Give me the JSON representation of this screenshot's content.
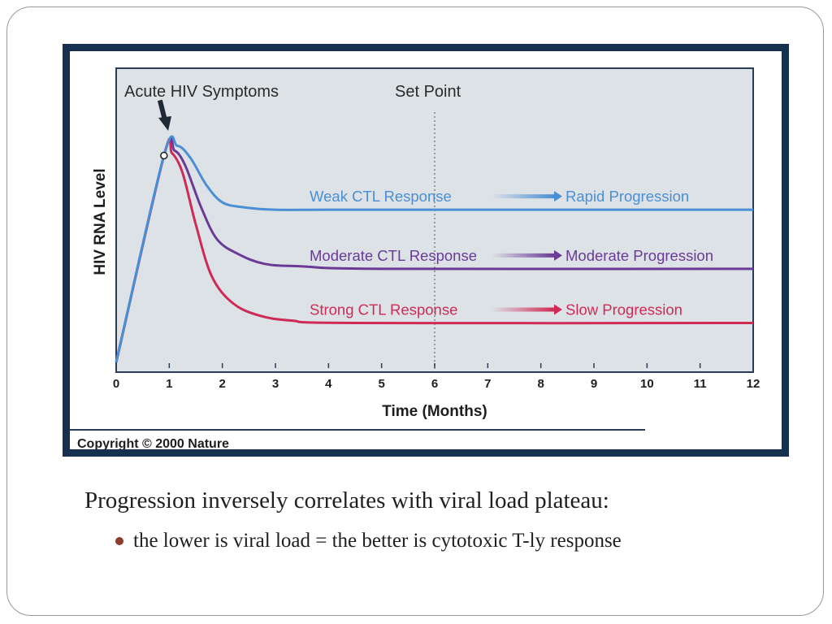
{
  "slide": {
    "caption": "Progression inversely correlates with viral load plateau:",
    "bullet": "the lower is viral load = the better is cytotoxic T-ly response"
  },
  "colors": {
    "frame_border": "#16304f",
    "plot_bg": "#dde2e7",
    "plot_border": "#2a3d56",
    "weak": "#4a8fd3",
    "moderate": "#6a3a96",
    "strong": "#cf2a55",
    "set_point_line": "#9a9a9a",
    "bullet": "#8e3a2c"
  },
  "chart_data": {
    "type": "line",
    "title": "",
    "xlabel": "Time (Months)",
    "ylabel": "HIV RNA Level",
    "xlim": [
      0,
      12
    ],
    "ylim": [
      0,
      100
    ],
    "x_ticks": [
      "0",
      "1",
      "2",
      "3",
      "4",
      "5",
      "6",
      "7",
      "8",
      "9",
      "10",
      "11",
      "12"
    ],
    "grid": false,
    "annotations": {
      "acute": "Acute HIV Symptoms",
      "acute_x": 0.9,
      "acute_y": 84,
      "set_point": "Set Point",
      "set_point_x": 6
    },
    "series": [
      {
        "name": "Weak CTL Response",
        "outcome": "Rapid Progression",
        "color_key": "weak",
        "x": [
          0,
          0.9,
          1.15,
          1.4,
          1.7,
          2.0,
          2.4,
          3.0,
          4.0,
          6.0,
          12
        ],
        "y": [
          0,
          84,
          88,
          83,
          72,
          65,
          63,
          62,
          62,
          62,
          62
        ]
      },
      {
        "name": "Moderate CTL Response",
        "outcome": "Moderate Progression",
        "color_key": "moderate",
        "x": [
          0,
          0.9,
          1.1,
          1.3,
          1.6,
          1.9,
          2.3,
          2.8,
          3.5,
          5.0,
          12
        ],
        "y": [
          0,
          84,
          86,
          80,
          63,
          50,
          44,
          40,
          39,
          38,
          38
        ]
      },
      {
        "name": "Strong CTL Response",
        "outcome": "Slow Progression",
        "color_key": "strong",
        "x": [
          0,
          0.9,
          1.05,
          1.25,
          1.5,
          1.8,
          2.2,
          2.7,
          3.3,
          4.5,
          12
        ],
        "y": [
          0,
          84,
          85,
          77,
          56,
          35,
          24,
          19,
          17,
          16,
          16
        ]
      }
    ],
    "copyright": "Copyright © 2000 Nature"
  }
}
